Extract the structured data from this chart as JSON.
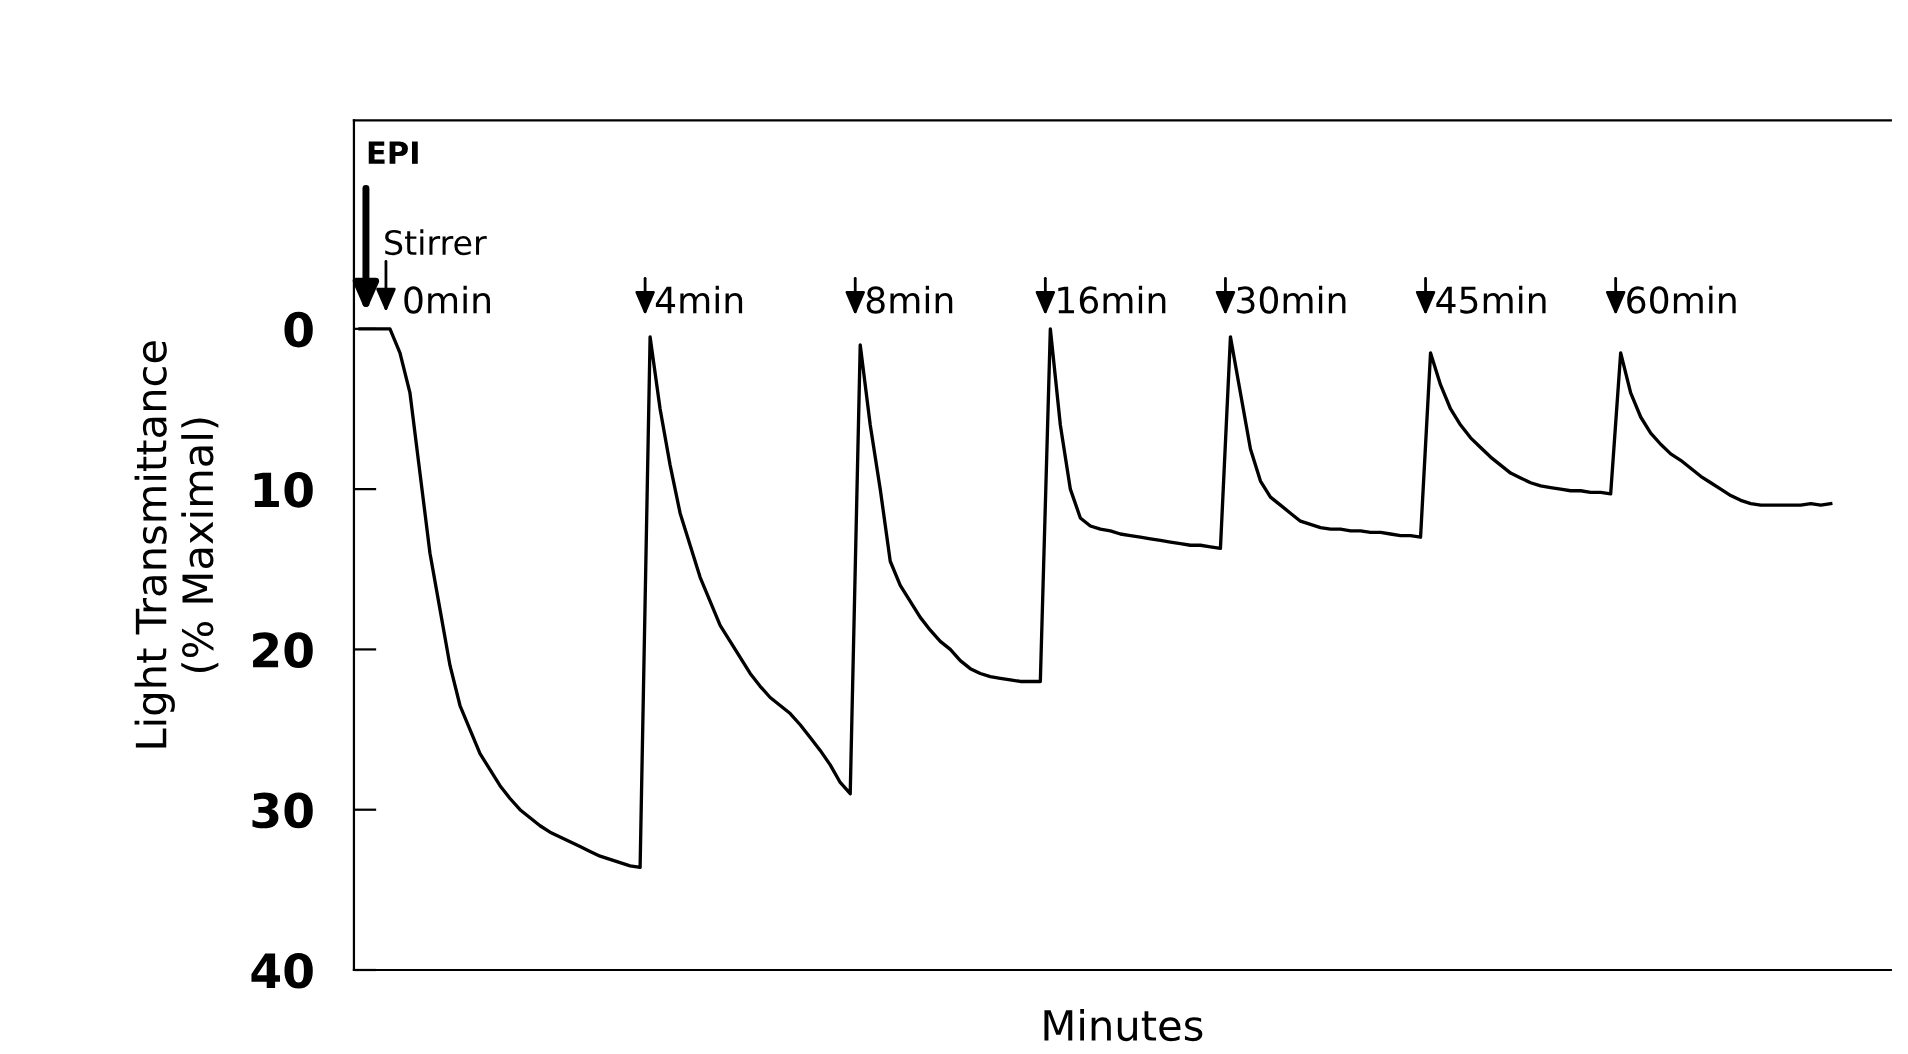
{
  "chart_data": {
    "type": "line",
    "xlabel": "Minutes",
    "ylabel": "Light Transmittance\n(% Maximal)",
    "categories": [
      null,
      null,
      null,
      null,
      null,
      null,
      null,
      null,
      null,
      null,
      null,
      null,
      null,
      null,
      null,
      null,
      null,
      null,
      null,
      null,
      null,
      null,
      null,
      null,
      null,
      null,
      null,
      null,
      null,
      null,
      null,
      null,
      null,
      null,
      null,
      null,
      null,
      null,
      null,
      null,
      null,
      null,
      null,
      null,
      null,
      null,
      null,
      null,
      null,
      null,
      null,
      null,
      null,
      null,
      null,
      null,
      null,
      null,
      null,
      null,
      null,
      null,
      null,
      null,
      null,
      null,
      null,
      null,
      null,
      null,
      null,
      null,
      null,
      null,
      null,
      null,
      null,
      null,
      null,
      null,
      null,
      null,
      null,
      null,
      null,
      null,
      null,
      null,
      null,
      null,
      null,
      null,
      null,
      null,
      null,
      null,
      null,
      null,
      null,
      null,
      null,
      null,
      null,
      null,
      null,
      null,
      null,
      null,
      null,
      null,
      null,
      null,
      null,
      null,
      null,
      null,
      null,
      null,
      null,
      null,
      null,
      null,
      null,
      null,
      null,
      null,
      null,
      null,
      null,
      null,
      null,
      null,
      null,
      null,
      null,
      null,
      null,
      null,
      null,
      null,
      null,
      null,
      null,
      null,
      null,
      null,
      null,
      null
    ],
    "series": [
      {
        "color": "#000000",
        "values": [
          0,
          0,
          0,
          0,
          1.5,
          4,
          9,
          14,
          17.5,
          21,
          23.5,
          25,
          26.5,
          27.5,
          28.5,
          29.3,
          30,
          30.5,
          31,
          31.4,
          31.7,
          32,
          32.3,
          32.6,
          32.9,
          33.1,
          33.3,
          33.5,
          33.6,
          0.5,
          5,
          8.5,
          11.5,
          13.5,
          15.5,
          17,
          18.5,
          19.5,
          20.5,
          21.5,
          22.3,
          23,
          23.5,
          24,
          24.7,
          25.5,
          26.3,
          27.2,
          28.3,
          29,
          1,
          6,
          10,
          14.5,
          16,
          17,
          18,
          18.8,
          19.5,
          20,
          20.7,
          21.2,
          21.5,
          21.7,
          21.8,
          21.9,
          22,
          22,
          22,
          0,
          6,
          10,
          11.8,
          12.3,
          12.5,
          12.6,
          12.8,
          12.9,
          13,
          13.1,
          13.2,
          13.3,
          13.4,
          13.5,
          13.5,
          13.6,
          13.7,
          0.5,
          4,
          7.5,
          9.5,
          10.5,
          11,
          11.5,
          12,
          12.2,
          12.4,
          12.5,
          12.5,
          12.6,
          12.6,
          12.7,
          12.7,
          12.8,
          12.9,
          12.9,
          13,
          1.5,
          3.5,
          5,
          6,
          6.8,
          7.4,
          8,
          8.5,
          9,
          9.3,
          9.6,
          9.8,
          9.9,
          10,
          10.1,
          10.1,
          10.2,
          10.2,
          10.3,
          1.5,
          4,
          5.5,
          6.5,
          7.2,
          7.8,
          8.2,
          8.7,
          9.2,
          9.6,
          10,
          10.4,
          10.7,
          10.9,
          11,
          11,
          11,
          11,
          11,
          10.9,
          11,
          10.9
        ]
      }
    ],
    "ylim": [
      40,
      -13
    ],
    "yticks": [
      0,
      10,
      20,
      30,
      40
    ],
    "tick_labels": "y",
    "annotations": [
      "EPI",
      "Stirrer",
      "0min",
      "4min",
      "8min",
      "16min",
      "30min",
      "45min",
      "60min"
    ],
    "marker": "none",
    "line_style": "solid",
    "grid": false,
    "legend": false
  }
}
